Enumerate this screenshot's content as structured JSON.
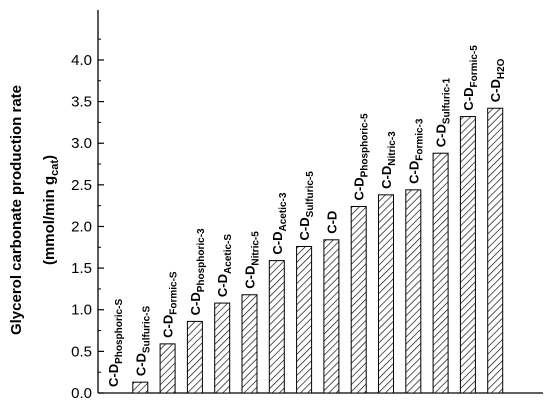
{
  "chart_data": {
    "type": "bar",
    "title": "",
    "xlabel": "",
    "ylabel_line1": "Glycerol carbonate production rate",
    "ylabel_line2_main": "(mmol/min g",
    "ylabel_line2_sub": "cat",
    "ylabel_line2_end": ")",
    "ylim": [
      0,
      4.6
    ],
    "yticks": [
      0.0,
      0.5,
      1.0,
      1.5,
      2.0,
      2.5,
      3.0,
      3.5,
      4.0
    ],
    "ytick_labels": [
      "0.0",
      "0.5",
      "1.0",
      "1.5",
      "2.0",
      "2.5",
      "3.0",
      "3.5",
      "4.0"
    ],
    "grid": false,
    "bar_fill": "diagonal-hatch",
    "categories": [
      {
        "main": "C-D",
        "sub": "Phosphoric-S"
      },
      {
        "main": "C-D",
        "sub": "Sulfuric-S"
      },
      {
        "main": "C-D",
        "sub": "Formic-S"
      },
      {
        "main": "C-D",
        "sub": "Phosphoric-3"
      },
      {
        "main": "C-D",
        "sub": "Acetic-S"
      },
      {
        "main": "C-D",
        "sub": "Nitric-5"
      },
      {
        "main": "C-D",
        "sub": "Acetic-3"
      },
      {
        "main": "C-D",
        "sub": "Sulfuric-5"
      },
      {
        "main": "C-D",
        "sub": ""
      },
      {
        "main": "C-D",
        "sub": "Phosphoric-5"
      },
      {
        "main": "C-D",
        "sub": "Nitric-3"
      },
      {
        "main": "C-D",
        "sub": "Formic-3"
      },
      {
        "main": "C-D",
        "sub": "Sulfuric-1"
      },
      {
        "main": "C-D",
        "sub": "Formic-5"
      },
      {
        "main": "C-D",
        "sub": "H2O"
      }
    ],
    "values": [
      0.0,
      0.13,
      0.59,
      0.86,
      1.08,
      1.18,
      1.59,
      1.76,
      1.84,
      2.24,
      2.38,
      2.44,
      2.88,
      3.32,
      3.42
    ]
  },
  "colors": {
    "axis": "#000000",
    "bar_stroke": "#000000",
    "hatch": "#000000",
    "background": "#ffffff"
  }
}
